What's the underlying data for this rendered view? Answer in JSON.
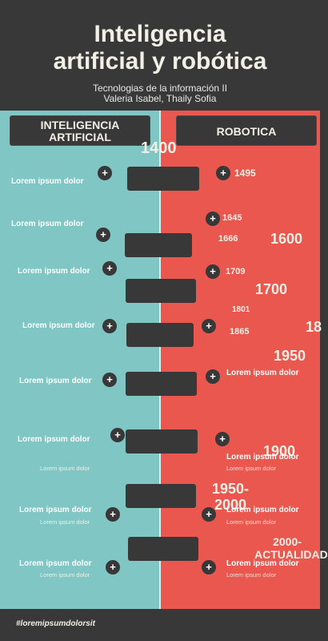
{
  "header": {
    "title_line1": "Inteligencia",
    "title_line2": "artificial y robótica",
    "subtitle_line1": "Tecnologias de la información  II",
    "subtitle_line2": "Valeria Isabel, Thaily Sofia"
  },
  "columns": {
    "left": "INTELIGENCIA ARTIFICIAL",
    "right": "ROBOTICA"
  },
  "icons": {
    "plus": "+"
  },
  "lorem": "Lorem ipsum dolor",
  "years": {
    "y1400": "1400",
    "y1495": "1495",
    "y1645": "1645",
    "y1666": "1666",
    "y1600": "1600",
    "y1709": "1709",
    "y1700": "1700",
    "y1801": "1801",
    "y1865": "1865",
    "y18": "18",
    "y1950": "1950",
    "y1900": "1900",
    "y1950_2000": "1950-2000",
    "y2000_actual": "2000-ACTUALIDAD"
  },
  "footer": {
    "hashtag": "#loremipsumdolorsit"
  },
  "colors": {
    "dark": "#383838",
    "teal": "#7fc6c4",
    "red": "#e9574f",
    "cream": "#f1efe6"
  }
}
